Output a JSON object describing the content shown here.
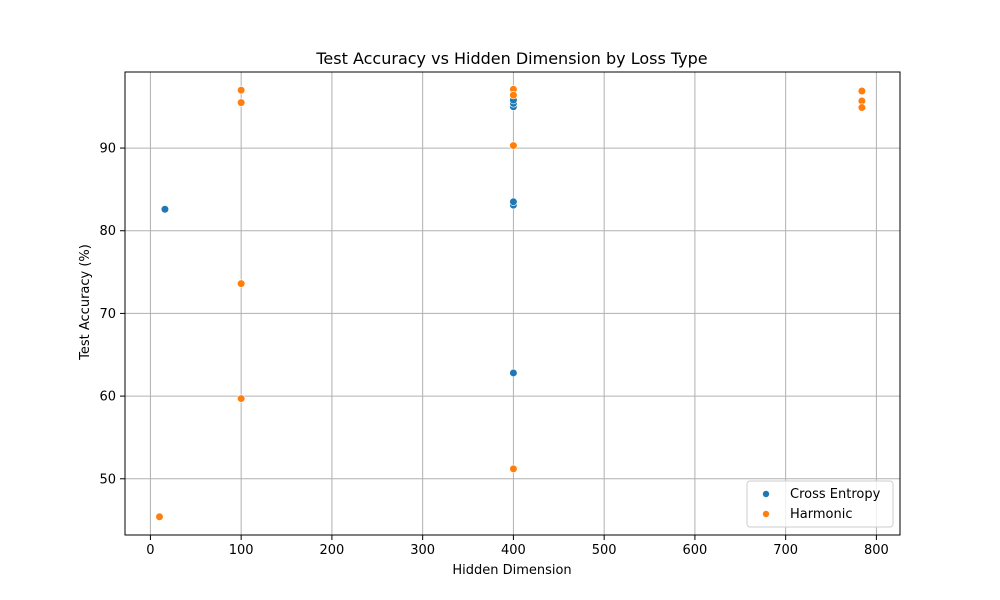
{
  "chart_data": {
    "type": "scatter",
    "title": "Test Accuracy vs Hidden Dimension by Loss Type",
    "xlabel": "Hidden Dimension",
    "ylabel": "Test Accuracy (%)",
    "xlim": [
      -28,
      826
    ],
    "ylim": [
      43.2,
      99.2
    ],
    "xticks": [
      0,
      100,
      200,
      300,
      400,
      500,
      600,
      700,
      800
    ],
    "yticks": [
      50,
      60,
      70,
      80,
      90
    ],
    "grid": true,
    "legend_position": "lower-right",
    "series": [
      {
        "name": "Cross Entropy",
        "color": "#1f77b4",
        "points": [
          {
            "x": 16,
            "y": 82.6
          },
          {
            "x": 400,
            "y": 83.1
          },
          {
            "x": 400,
            "y": 83.5
          },
          {
            "x": 400,
            "y": 62.8
          },
          {
            "x": 400,
            "y": 95.0
          },
          {
            "x": 400,
            "y": 95.4
          },
          {
            "x": 400,
            "y": 95.8
          }
        ]
      },
      {
        "name": "Harmonic",
        "color": "#ff7f0e",
        "points": [
          {
            "x": 10,
            "y": 45.4
          },
          {
            "x": 100,
            "y": 97.0
          },
          {
            "x": 100,
            "y": 95.5
          },
          {
            "x": 100,
            "y": 73.6
          },
          {
            "x": 100,
            "y": 59.7
          },
          {
            "x": 400,
            "y": 97.1
          },
          {
            "x": 400,
            "y": 96.4
          },
          {
            "x": 400,
            "y": 90.3
          },
          {
            "x": 400,
            "y": 51.2
          },
          {
            "x": 784,
            "y": 96.9
          },
          {
            "x": 784,
            "y": 95.7
          },
          {
            "x": 784,
            "y": 94.9
          }
        ]
      }
    ]
  }
}
